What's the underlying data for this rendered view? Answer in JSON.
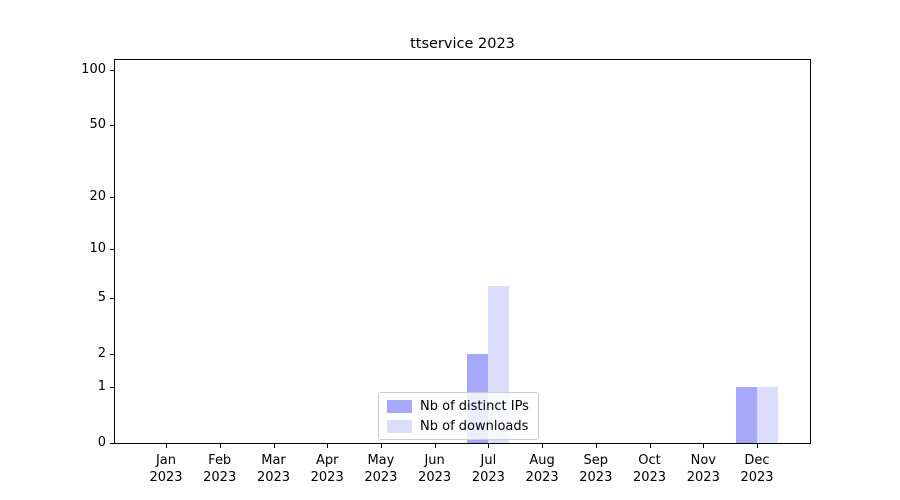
{
  "chart_data": {
    "type": "bar",
    "title": "ttservice 2023",
    "categories": [
      "Jan",
      "Feb",
      "Mar",
      "Apr",
      "May",
      "Jun",
      "Jul",
      "Aug",
      "Sep",
      "Oct",
      "Nov",
      "Dec"
    ],
    "year_label": "2023",
    "series": [
      {
        "name": "Nb of distinct IPs",
        "color": "rgba(100,100,245,0.57)",
        "values": [
          0,
          0,
          0,
          0,
          0,
          0,
          2,
          0,
          0,
          0,
          0,
          1
        ]
      },
      {
        "name": "Nb of downloads",
        "color": "rgba(100,100,245,0.22)",
        "values": [
          0,
          0,
          0,
          0,
          0,
          0,
          6,
          0,
          0,
          0,
          0,
          1
        ]
      }
    ],
    "yscale": "log1p",
    "yticks": [
      0,
      1,
      2,
      5,
      10,
      20,
      50,
      100
    ],
    "minor_gridlines": [
      2,
      3,
      4,
      5,
      6,
      7,
      8,
      9,
      20,
      30,
      40,
      50,
      60,
      70,
      80,
      90
    ],
    "major_gridlines": [
      1,
      10,
      100
    ],
    "ylim": [
      0,
      113
    ],
    "grid": "horizontal",
    "legend_position": "lower center",
    "colors": {
      "axis": "#000000",
      "major_grid": "#c2c2c2",
      "minor_grid": "#ebebeb",
      "background": "#ffffff"
    }
  }
}
